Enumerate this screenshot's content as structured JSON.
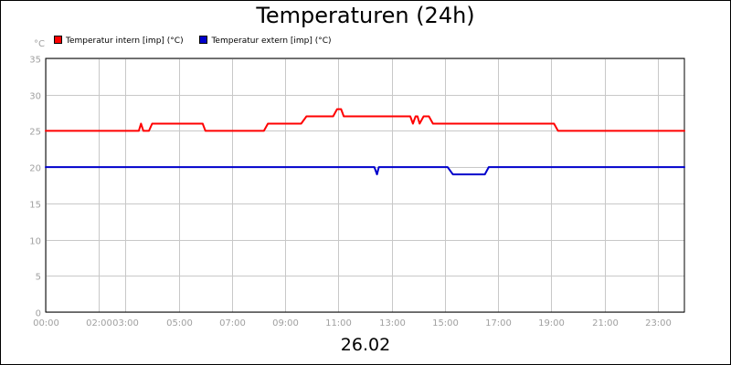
{
  "chart_data": {
    "type": "line",
    "title": "Temperaturen (24h)",
    "xlabel": "26.02",
    "ylabel": "°C",
    "ylim": [
      0,
      35
    ],
    "xlim": [
      0,
      24
    ],
    "yticks": [
      0,
      5,
      10,
      15,
      20,
      25,
      30,
      35
    ],
    "xticks": [
      {
        "pos": 0,
        "label": "00:00"
      },
      {
        "pos": 2,
        "label": "02:00"
      },
      {
        "pos": 3,
        "label": "03:00"
      },
      {
        "pos": 5,
        "label": "05:00"
      },
      {
        "pos": 7,
        "label": "07:00"
      },
      {
        "pos": 9,
        "label": "09:00"
      },
      {
        "pos": 11,
        "label": "11:00"
      },
      {
        "pos": 13,
        "label": "13:00"
      },
      {
        "pos": 15,
        "label": "15:00"
      },
      {
        "pos": 17,
        "label": "17:00"
      },
      {
        "pos": 19,
        "label": "19:00"
      },
      {
        "pos": 21,
        "label": "21:00"
      },
      {
        "pos": 23,
        "label": "23:00"
      }
    ],
    "grid": true,
    "legend_position": "top-left",
    "series": [
      {
        "name": "Temperatur intern [imp] (°C)",
        "color": "#ff0000",
        "points": [
          [
            0,
            25
          ],
          [
            3.5,
            25
          ],
          [
            3.58,
            26
          ],
          [
            3.67,
            25
          ],
          [
            3.88,
            25
          ],
          [
            4,
            26
          ],
          [
            5.9,
            26
          ],
          [
            6,
            25
          ],
          [
            8.2,
            25
          ],
          [
            8.35,
            26
          ],
          [
            9.6,
            26
          ],
          [
            9.8,
            27
          ],
          [
            10.8,
            27
          ],
          [
            10.95,
            28
          ],
          [
            11.1,
            28
          ],
          [
            11.2,
            27
          ],
          [
            13.7,
            27
          ],
          [
            13.8,
            26
          ],
          [
            13.9,
            27
          ],
          [
            13.97,
            27
          ],
          [
            14.05,
            26
          ],
          [
            14.2,
            27
          ],
          [
            14.4,
            27
          ],
          [
            14.55,
            26
          ],
          [
            19.1,
            26
          ],
          [
            19.25,
            25
          ],
          [
            24,
            25
          ]
        ]
      },
      {
        "name": "Temperatur extern [imp] (°C)",
        "color": "#0000cc",
        "points": [
          [
            0,
            20
          ],
          [
            12.35,
            20
          ],
          [
            12.45,
            19
          ],
          [
            12.52,
            20
          ],
          [
            15.1,
            20
          ],
          [
            15.3,
            19
          ],
          [
            16.5,
            19
          ],
          [
            16.65,
            20
          ],
          [
            24,
            20
          ]
        ]
      }
    ]
  }
}
